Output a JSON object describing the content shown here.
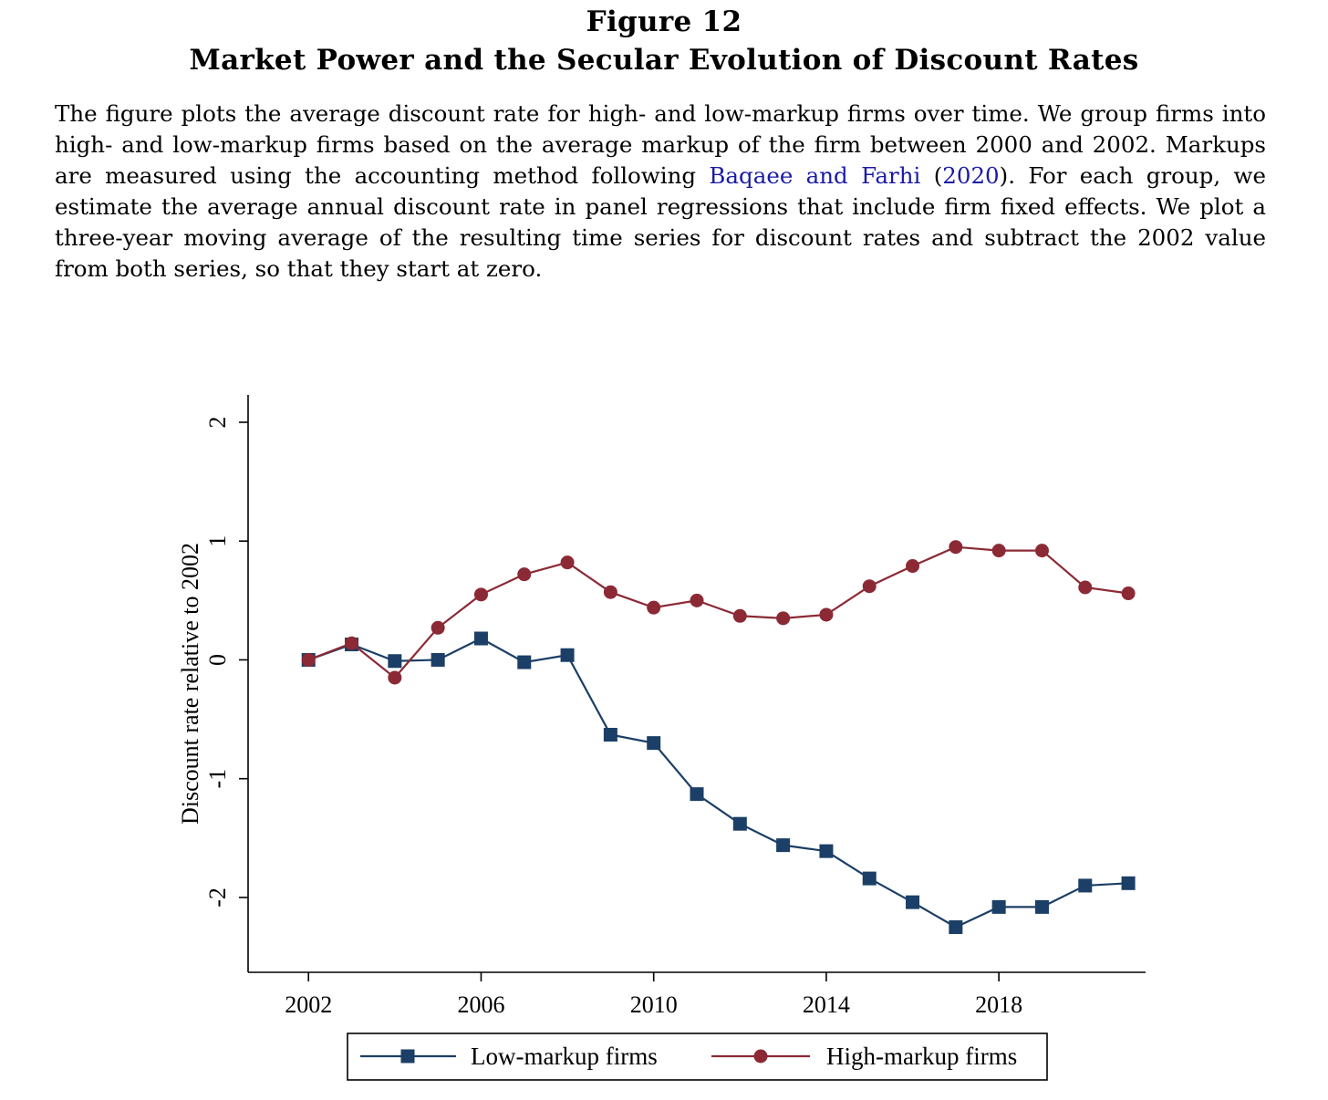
{
  "figure": {
    "number": "Figure 12",
    "title": "Market Power and the Secular Evolution of Discount Rates",
    "caption": {
      "part1": "The figure plots the average discount rate for high- and low-markup firms over time. We group firms into high- and low-markup firms based on the average markup of the firm between 2000 and 2002. Markups are measured using the accounting method following ",
      "cite_authors": "Baqaee and Farhi",
      "cite_open": " (",
      "cite_year": "2020",
      "part2": "). For each group, we estimate the average annual discount rate in panel regressions that include firm fixed effects. We plot a three-year moving average of the resulting time series for discount rates and subtract the 2002 value from both series, so that they start at zero."
    }
  },
  "colors": {
    "low_markup": "#1b3f66",
    "high_markup": "#8b2a35",
    "citation_link": "#1a1aa6"
  },
  "chart_data": {
    "type": "line",
    "xlabel": "",
    "ylabel": "Discount rate relative to 2002",
    "x": [
      2002,
      2003,
      2004,
      2005,
      2006,
      2007,
      2008,
      2009,
      2010,
      2011,
      2012,
      2013,
      2014,
      2015,
      2016,
      2017,
      2018,
      2019,
      2020,
      2021
    ],
    "xlim": [
      2000.6,
      2021.4
    ],
    "ylim": [
      -2.63,
      2.23
    ],
    "xticks": [
      2002,
      2006,
      2010,
      2014,
      2018
    ],
    "yticks": [
      2,
      1,
      0,
      -1,
      -2
    ],
    "xtick_labels": [
      "2002",
      "2006",
      "2010",
      "2014",
      "2018"
    ],
    "ytick_labels": [
      "2",
      "1",
      "0",
      "-1",
      "-2"
    ],
    "grid": false,
    "legend_position": "bottom",
    "series": [
      {
        "name": "Low-markup firms",
        "marker": "square",
        "color": "#1b3f66",
        "values": [
          0.0,
          0.13,
          -0.01,
          0.0,
          0.18,
          -0.02,
          0.04,
          -0.63,
          -0.7,
          -1.13,
          -1.38,
          -1.56,
          -1.61,
          -1.84,
          -2.04,
          -2.25,
          -2.08,
          -2.08,
          -1.9,
          -1.88
        ]
      },
      {
        "name": "High-markup firms",
        "marker": "circle",
        "color": "#8b2a35",
        "values": [
          0.0,
          0.14,
          -0.15,
          0.27,
          0.55,
          0.72,
          0.82,
          0.57,
          0.44,
          0.5,
          0.37,
          0.35,
          0.38,
          0.62,
          0.79,
          0.95,
          0.92,
          0.92,
          0.61,
          0.56
        ]
      }
    ]
  }
}
